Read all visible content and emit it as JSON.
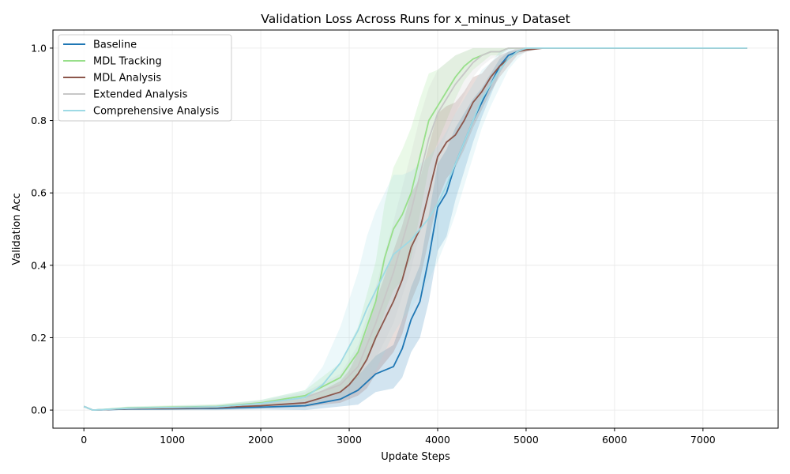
{
  "chart_data": {
    "type": "line",
    "title": "Validation Loss Across Runs for x_minus_y Dataset",
    "xlabel": "Update Steps",
    "ylabel": "Validation Acc",
    "xlim": [
      -350,
      7850
    ],
    "ylim": [
      -0.05,
      1.05
    ],
    "xticks": [
      0,
      1000,
      2000,
      3000,
      4000,
      5000,
      6000,
      7000
    ],
    "xtick_labels": [
      "0",
      "1000",
      "2000",
      "3000",
      "4000",
      "5000",
      "6000",
      "7000"
    ],
    "yticks": [
      0.0,
      0.2,
      0.4,
      0.6,
      0.8,
      1.0
    ],
    "ytick_labels": [
      "0.0",
      "0.2",
      "0.4",
      "0.6",
      "0.8",
      "1.0"
    ],
    "grid": true,
    "legend_position": "top-left",
    "series": [
      {
        "name": "Baseline",
        "color": "#1f77b4",
        "x": [
          0,
          100,
          500,
          1000,
          1500,
          2000,
          2500,
          2900,
          3100,
          3300,
          3500,
          3600,
          3700,
          3800,
          3900,
          4000,
          4100,
          4200,
          4300,
          4400,
          4500,
          4600,
          4700,
          4800,
          4900,
          5000,
          5200,
          5500,
          6000,
          6500,
          7000,
          7500
        ],
        "y": [
          0.01,
          0.0,
          0.003,
          0.004,
          0.005,
          0.008,
          0.012,
          0.03,
          0.055,
          0.1,
          0.12,
          0.17,
          0.25,
          0.3,
          0.42,
          0.56,
          0.6,
          0.68,
          0.74,
          0.8,
          0.85,
          0.9,
          0.95,
          0.98,
          0.99,
          1.0,
          1.0,
          1.0,
          1.0,
          1.0,
          1.0,
          1.0
        ],
        "band": [
          0.0,
          0.0,
          0.003,
          0.004,
          0.005,
          0.006,
          0.012,
          0.02,
          0.04,
          0.05,
          0.06,
          0.08,
          0.09,
          0.1,
          0.12,
          0.12,
          0.12,
          0.1,
          0.08,
          0.06,
          0.04,
          0.03,
          0.02,
          0.01,
          0.005,
          0.0,
          0.0,
          0.0,
          0.0,
          0.0,
          0.0,
          0.0
        ]
      },
      {
        "name": "MDL Tracking",
        "color": "#98df8a",
        "x": [
          0,
          100,
          500,
          1000,
          1500,
          2000,
          2500,
          2900,
          3100,
          3300,
          3400,
          3500,
          3600,
          3700,
          3800,
          3900,
          4000,
          4100,
          4200,
          4300,
          4400,
          4500,
          4600,
          4700,
          4800,
          4900,
          5000,
          5200,
          5500,
          6000,
          6500,
          7000,
          7500
        ],
        "y": [
          0.01,
          0.0,
          0.006,
          0.008,
          0.01,
          0.02,
          0.04,
          0.09,
          0.16,
          0.3,
          0.42,
          0.5,
          0.54,
          0.6,
          0.7,
          0.8,
          0.84,
          0.88,
          0.92,
          0.95,
          0.97,
          0.98,
          0.99,
          0.99,
          1.0,
          1.0,
          1.0,
          1.0,
          1.0,
          1.0,
          1.0,
          1.0,
          1.0
        ],
        "band": [
          0.0,
          0.0,
          0.004,
          0.005,
          0.006,
          0.008,
          0.015,
          0.04,
          0.07,
          0.11,
          0.15,
          0.17,
          0.18,
          0.18,
          0.16,
          0.13,
          0.1,
          0.08,
          0.06,
          0.04,
          0.03,
          0.02,
          0.01,
          0.01,
          0.0,
          0.0,
          0.0,
          0.0,
          0.0,
          0.0,
          0.0,
          0.0,
          0.0
        ]
      },
      {
        "name": "MDL Analysis",
        "color": "#8c564b",
        "x": [
          0,
          100,
          500,
          1000,
          1500,
          2000,
          2500,
          2700,
          2900,
          3000,
          3100,
          3200,
          3300,
          3400,
          3500,
          3600,
          3700,
          3800,
          3900,
          4000,
          4100,
          4200,
          4300,
          4400,
          4500,
          4600,
          4700,
          4800,
          4900,
          5000,
          5200,
          5500,
          6000,
          6500,
          7000,
          7500
        ],
        "y": [
          0.01,
          0.0,
          0.004,
          0.005,
          0.007,
          0.012,
          0.02,
          0.035,
          0.05,
          0.07,
          0.1,
          0.14,
          0.2,
          0.25,
          0.3,
          0.36,
          0.45,
          0.5,
          0.6,
          0.7,
          0.74,
          0.76,
          0.8,
          0.85,
          0.88,
          0.92,
          0.95,
          0.97,
          0.99,
          0.995,
          1.0,
          1.0,
          1.0,
          1.0,
          1.0,
          1.0
        ],
        "band": [
          0.0,
          0.0,
          0.003,
          0.004,
          0.005,
          0.007,
          0.012,
          0.02,
          0.03,
          0.04,
          0.06,
          0.08,
          0.1,
          0.12,
          0.14,
          0.15,
          0.15,
          0.14,
          0.13,
          0.12,
          0.1,
          0.09,
          0.08,
          0.07,
          0.05,
          0.04,
          0.03,
          0.02,
          0.01,
          0.005,
          0.0,
          0.0,
          0.0,
          0.0,
          0.0,
          0.0
        ]
      },
      {
        "name": "Extended Analysis",
        "color": "#c7c7c7",
        "x": [
          0,
          100,
          500,
          1000,
          1500,
          2000,
          2500,
          2900,
          3100,
          3300,
          3500,
          3700,
          3800,
          3900,
          4000,
          4100,
          4200,
          4300,
          4400,
          4500,
          4600,
          4700,
          4800,
          4900,
          5000,
          5200,
          5500,
          6000,
          6500,
          7000,
          7500
        ],
        "y": [
          0.01,
          0.0,
          0.005,
          0.007,
          0.009,
          0.018,
          0.035,
          0.07,
          0.12,
          0.24,
          0.38,
          0.55,
          0.65,
          0.75,
          0.82,
          0.86,
          0.9,
          0.93,
          0.96,
          0.98,
          0.99,
          0.99,
          1.0,
          1.0,
          1.0,
          1.0,
          1.0,
          1.0,
          1.0,
          1.0,
          1.0
        ],
        "band": [
          0.0,
          0.0,
          0.003,
          0.004,
          0.005,
          0.008,
          0.015,
          0.03,
          0.06,
          0.1,
          0.14,
          0.16,
          0.16,
          0.14,
          0.12,
          0.1,
          0.08,
          0.06,
          0.04,
          0.03,
          0.02,
          0.01,
          0.005,
          0.0,
          0.0,
          0.0,
          0.0,
          0.0,
          0.0,
          0.0,
          0.0
        ]
      },
      {
        "name": "Comprehensive Analysis",
        "color": "#9edae5",
        "x": [
          0,
          100,
          500,
          1000,
          1500,
          2000,
          2500,
          2700,
          2900,
          3100,
          3200,
          3300,
          3400,
          3500,
          3600,
          3700,
          3800,
          3900,
          4000,
          4100,
          4200,
          4300,
          4400,
          4500,
          4600,
          4700,
          4800,
          4900,
          5000,
          5200,
          5500,
          6000,
          6500,
          7000,
          7500
        ],
        "y": [
          0.01,
          0.0,
          0.005,
          0.007,
          0.009,
          0.018,
          0.035,
          0.07,
          0.13,
          0.22,
          0.28,
          0.33,
          0.38,
          0.43,
          0.45,
          0.47,
          0.5,
          0.53,
          0.57,
          0.62,
          0.68,
          0.74,
          0.8,
          0.86,
          0.9,
          0.94,
          0.97,
          0.99,
          1.0,
          1.0,
          1.0,
          1.0,
          1.0,
          1.0,
          1.0
        ],
        "band": [
          0.0,
          0.0,
          0.004,
          0.005,
          0.006,
          0.01,
          0.02,
          0.05,
          0.1,
          0.16,
          0.2,
          0.22,
          0.22,
          0.22,
          0.2,
          0.19,
          0.18,
          0.17,
          0.16,
          0.15,
          0.14,
          0.12,
          0.1,
          0.08,
          0.06,
          0.05,
          0.03,
          0.02,
          0.01,
          0.0,
          0.0,
          0.0,
          0.0,
          0.0,
          0.0
        ]
      }
    ]
  }
}
